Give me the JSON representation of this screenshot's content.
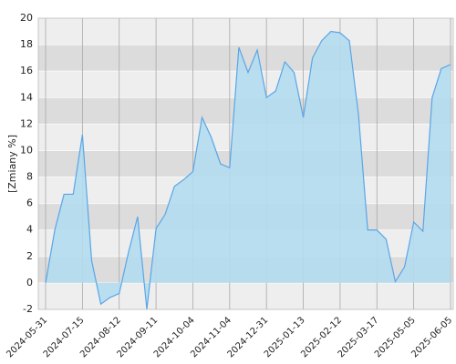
{
  "chart_data": {
    "type": "area",
    "y_label": "[Zmiany %]",
    "categories": [
      "2024-05-31",
      null,
      null,
      null,
      "2024-07-15",
      null,
      null,
      null,
      "2024-08-12",
      null,
      null,
      null,
      "2024-09-11",
      null,
      null,
      null,
      "2024-10-04",
      null,
      null,
      null,
      "2024-11-04",
      null,
      null,
      null,
      "2024-12-31",
      null,
      null,
      null,
      "2025-01-13",
      null,
      null,
      null,
      "2025-02-12",
      null,
      null,
      null,
      "2025-03-17",
      null,
      null,
      null,
      "2025-05-05",
      null,
      null,
      null,
      "2025-06-05"
    ],
    "values": [
      0,
      4,
      6.7,
      6.7,
      11.2,
      1.7,
      -1.6,
      -1.1,
      -0.8,
      2.3,
      5,
      -2,
      4.1,
      5.2,
      7.3,
      7.8,
      8.4,
      12.5,
      11,
      9,
      8.7,
      17.8,
      15.9,
      17.6,
      14,
      14.5,
      16.7,
      15.9,
      12.5,
      17,
      18.3,
      19,
      18.9,
      18.3,
      12.7,
      4,
      4,
      3.3,
      0.1,
      1.2,
      4.6,
      3.9,
      14,
      16.2,
      16.5
    ],
    "color": "#5aa5e6",
    "fill": "#b3dcef",
    "ylim": [
      -2,
      20
    ],
    "yticks": [
      -2,
      0,
      2,
      4,
      6,
      8,
      10,
      12,
      14,
      16,
      18,
      20
    ],
    "grid": true
  }
}
